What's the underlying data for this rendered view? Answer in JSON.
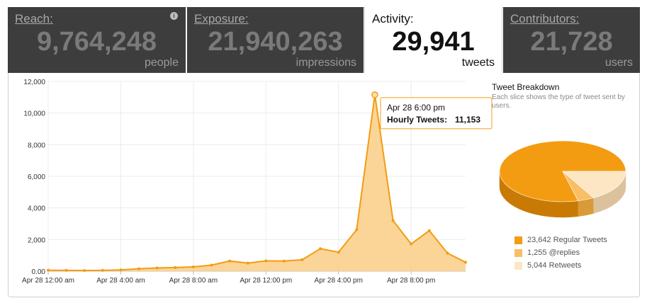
{
  "tabs": [
    {
      "title": "Reach:",
      "value": "9,764,248",
      "unit": "people",
      "active": false
    },
    {
      "title": "Exposure:",
      "value": "21,940,263",
      "unit": "impressions",
      "active": false
    },
    {
      "title": "Activity:",
      "value": "29,941",
      "unit": "tweets",
      "active": true
    },
    {
      "title": "Contributors:",
      "value": "21,728",
      "unit": "users",
      "active": false
    }
  ],
  "chart_data": [
    {
      "type": "area",
      "title": "",
      "xlabel": "",
      "ylabel": "",
      "ylim": [
        0,
        12000
      ],
      "yticks": [
        "0.00",
        "2,000",
        "4,000",
        "6,000",
        "8,000",
        "10,000",
        "12,000"
      ],
      "xticks": [
        "Apr 28 12:00 am",
        "Apr 28 4:00 am",
        "Apr 28 8:00 am",
        "Apr 28 12:00 pm",
        "Apr 28 4:00 pm",
        "Apr 28 8:00 pm"
      ],
      "x": [
        "Apr 28 12:00 am",
        "1:00 am",
        "2:00 am",
        "3:00 am",
        "4:00 am",
        "5:00 am",
        "6:00 am",
        "7:00 am",
        "8:00 am",
        "9:00 am",
        "10:00 am",
        "11:00 am",
        "12:00 pm",
        "1:00 pm",
        "2:00 pm",
        "3:00 pm",
        "4:00 pm",
        "5:00 pm",
        "6:00 pm",
        "7:00 pm",
        "8:00 pm",
        "9:00 pm",
        "10:00 pm",
        "11:00 pm"
      ],
      "series": [
        {
          "name": "Hourly Tweets",
          "values": [
            60,
            50,
            40,
            50,
            80,
            150,
            200,
            230,
            270,
            380,
            640,
            510,
            650,
            640,
            720,
            1420,
            1200,
            2620,
            11153,
            3200,
            1720,
            2560,
            1140,
            560
          ]
        }
      ],
      "grid": true,
      "color": "#f39c12",
      "fill": "#fbd08c",
      "tooltip": {
        "title": "Apr 28 6:00 pm",
        "label": "Hourly Tweets:",
        "value": "11,153"
      }
    },
    {
      "type": "pie",
      "title": "Tweet Breakdown",
      "subtitle": "Each slice shows the type of tweet sent by users.",
      "slices": [
        {
          "label": "23,642 Regular Tweets",
          "value": 23642,
          "color": "#f39c12"
        },
        {
          "label": "1,255 @replies",
          "value": 1255,
          "color": "#f8bf66"
        },
        {
          "label": "5,044 Retweets",
          "value": 5044,
          "color": "#fde6c4"
        }
      ]
    }
  ]
}
